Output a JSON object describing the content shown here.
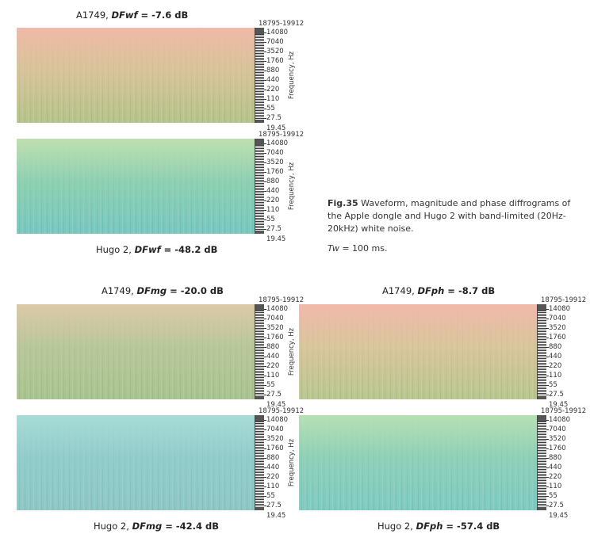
{
  "axis": {
    "range_label": "18795-19912",
    "ticks": [
      "14080",
      "7040",
      "3520",
      "1760",
      "880",
      "440",
      "220",
      "110",
      "55",
      "27.5"
    ],
    "bottom_label": "19.45",
    "ylabel": "Frequency, Hz"
  },
  "panels": [
    {
      "id": "a1749-dfwf",
      "device": "A1749, ",
      "metric": "DFwf",
      "eq": " = ",
      "value": "-7.6 dB",
      "colors": {
        "top": "#f0b9a8",
        "mid": "#d8c49a",
        "bottom": "#b5c48a"
      }
    },
    {
      "id": "hugo2-dfwf",
      "device": "Hugo 2, ",
      "metric": "DFwf",
      "eq": " = ",
      "value": "-48.2 dB",
      "colors": {
        "top": "#bfe0b0",
        "mid": "#8fd0b2",
        "bottom": "#78c8c0"
      }
    },
    {
      "id": "a1749-dfmg",
      "device": "A1749, ",
      "metric": "DFmg",
      "eq": " = ",
      "value": "-20.0 dB",
      "colors": {
        "top": "#dcc9a8",
        "mid": "#b9c79a",
        "bottom": "#a9c490"
      }
    },
    {
      "id": "a1749-dfph",
      "device": "A1749, ",
      "metric": "DFph",
      "eq": " = ",
      "value": "-8.7 dB",
      "colors": {
        "top": "#f1b9ab",
        "mid": "#d9c69c",
        "bottom": "#b9c78f"
      }
    },
    {
      "id": "hugo2-dfmg",
      "device": "Hugo 2, ",
      "metric": "DFmg",
      "eq": " = ",
      "value": "-42.4 dB",
      "colors": {
        "top": "#a8dcd6",
        "mid": "#92cccb",
        "bottom": "#8ec8c6"
      }
    },
    {
      "id": "hugo2-dfph",
      "device": "Hugo 2, ",
      "metric": "DFph",
      "eq": " = ",
      "value": "-57.4 dB",
      "colors": {
        "top": "#b7e0b3",
        "mid": "#8fd0b8",
        "bottom": "#7fcbc2"
      }
    }
  ],
  "caption": {
    "lead": "Fig.35",
    "text": " Waveform, magnitude and phase diffrograms of the Apple dongle and Hugo 2 with band-limited (20Hz-20kHz) white noise.",
    "tw_label": "Tw",
    "tw_text": " = 100 ms."
  }
}
